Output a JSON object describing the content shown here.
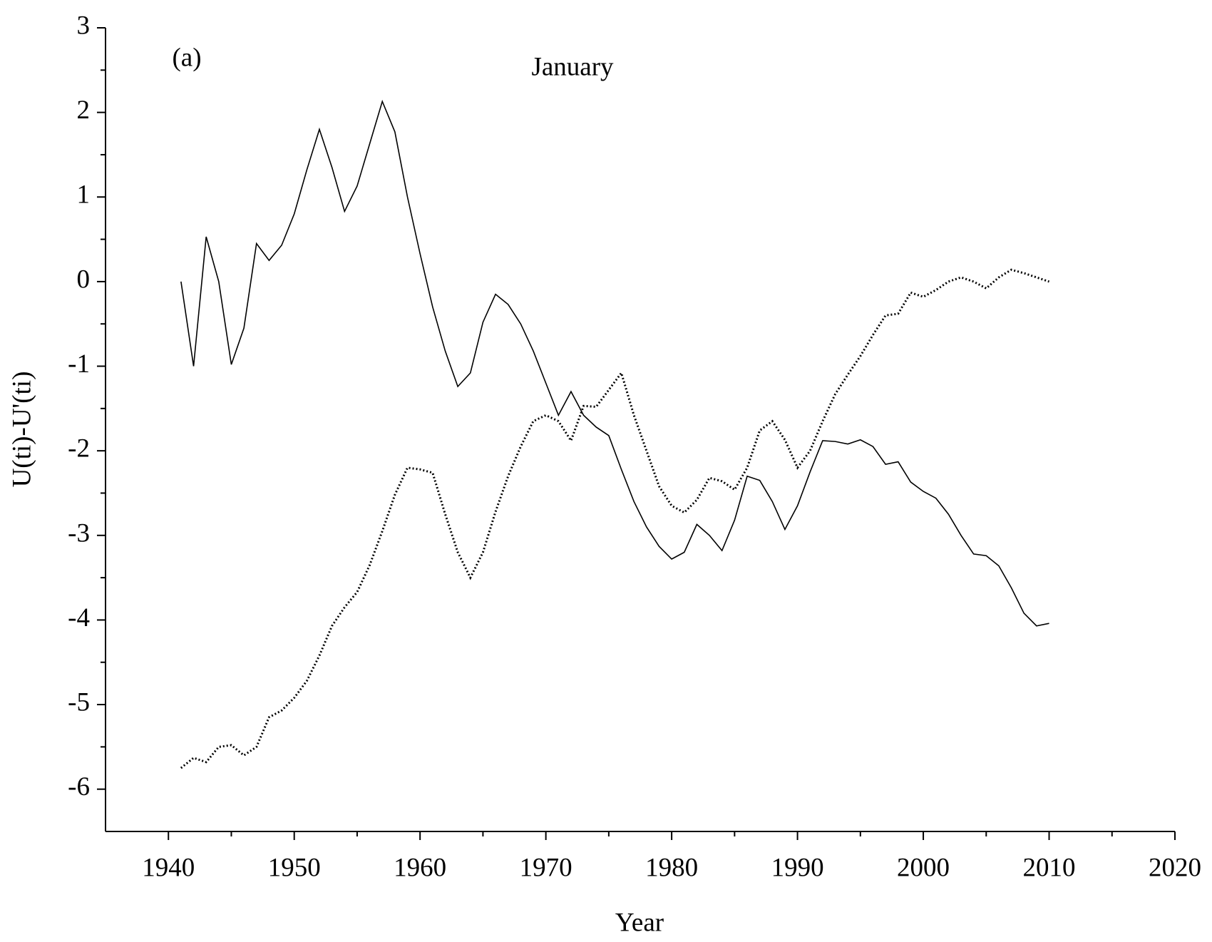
{
  "chart_data": {
    "type": "line",
    "title": "January",
    "annotations": [
      "(a)"
    ],
    "x_label": "Year",
    "y_label": "U(ti)-U'(ti)",
    "x": [
      1941,
      1942,
      1943,
      1944,
      1945,
      1946,
      1947,
      1948,
      1949,
      1950,
      1951,
      1952,
      1953,
      1954,
      1955,
      1956,
      1957,
      1958,
      1959,
      1960,
      1961,
      1962,
      1963,
      1964,
      1965,
      1966,
      1967,
      1968,
      1969,
      1970,
      1971,
      1972,
      1973,
      1974,
      1975,
      1976,
      1977,
      1978,
      1979,
      1980,
      1981,
      1982,
      1983,
      1984,
      1985,
      1986,
      1987,
      1988,
      1989,
      1990,
      1991,
      1992,
      1993,
      1994,
      1995,
      1996,
      1997,
      1998,
      1999,
      2000,
      2001,
      2002,
      2003,
      2004,
      2005,
      2006,
      2007,
      2008,
      2009,
      2010
    ],
    "series": [
      {
        "color": "#000000",
        "style": "solid",
        "values": [
          0,
          -1.0,
          0.53,
          0.0,
          -0.98,
          -0.55,
          0.45,
          0.25,
          0.43,
          0.8,
          1.32,
          1.8,
          1.35,
          0.83,
          1.13,
          1.63,
          2.13,
          1.77,
          1.0,
          0.33,
          -0.3,
          -0.82,
          -1.24,
          -1.08,
          -0.48,
          -0.15,
          -0.27,
          -0.5,
          -0.82,
          -1.2,
          -1.58,
          -1.3,
          -1.58,
          -1.72,
          -1.82,
          -2.22,
          -2.6,
          -2.9,
          -3.13,
          -3.28,
          -3.2,
          -2.87,
          -3.0,
          -3.18,
          -2.82,
          -2.3,
          -2.35,
          -2.6,
          -2.93,
          -2.65,
          -2.25,
          -1.88,
          -1.89,
          -1.92,
          -1.87,
          -1.95,
          -2.16,
          -2.13,
          -2.37,
          -2.48,
          -2.56,
          -2.75,
          -3.0,
          -3.22,
          -3.24,
          -3.36,
          -3.62,
          -3.92,
          -4.07,
          -4.04
        ]
      },
      {
        "color": "#000000",
        "style": "dotted",
        "values": [
          -5.75,
          -5.63,
          -5.68,
          -5.5,
          -5.48,
          -5.6,
          -5.5,
          -5.15,
          -5.07,
          -4.92,
          -4.72,
          -4.42,
          -4.07,
          -3.85,
          -3.67,
          -3.35,
          -2.95,
          -2.52,
          -2.2,
          -2.22,
          -2.26,
          -2.75,
          -3.2,
          -3.5,
          -3.2,
          -2.72,
          -2.3,
          -1.95,
          -1.65,
          -1.58,
          -1.65,
          -1.88,
          -1.47,
          -1.48,
          -1.28,
          -1.08,
          -1.58,
          -2.0,
          -2.42,
          -2.65,
          -2.73,
          -2.58,
          -2.32,
          -2.36,
          -2.46,
          -2.2,
          -1.76,
          -1.65,
          -1.87,
          -2.2,
          -2.0,
          -1.65,
          -1.33,
          -1.1,
          -0.88,
          -0.63,
          -0.4,
          -0.38,
          -0.13,
          -0.18,
          -0.1,
          0.0,
          0.05,
          0.0,
          -0.08,
          0.05,
          0.14,
          0.1,
          0.05,
          0.0
        ]
      }
    ],
    "xlim": [
      1935,
      2020
    ],
    "xticks": [
      1940,
      1950,
      1960,
      1970,
      1980,
      1990,
      2000,
      2010,
      2020
    ],
    "ylim": [
      -6.5,
      3
    ],
    "yticks": [
      -6,
      -5,
      -4,
      -3,
      -2,
      -1,
      0,
      1,
      2,
      3
    ],
    "grid": false
  }
}
